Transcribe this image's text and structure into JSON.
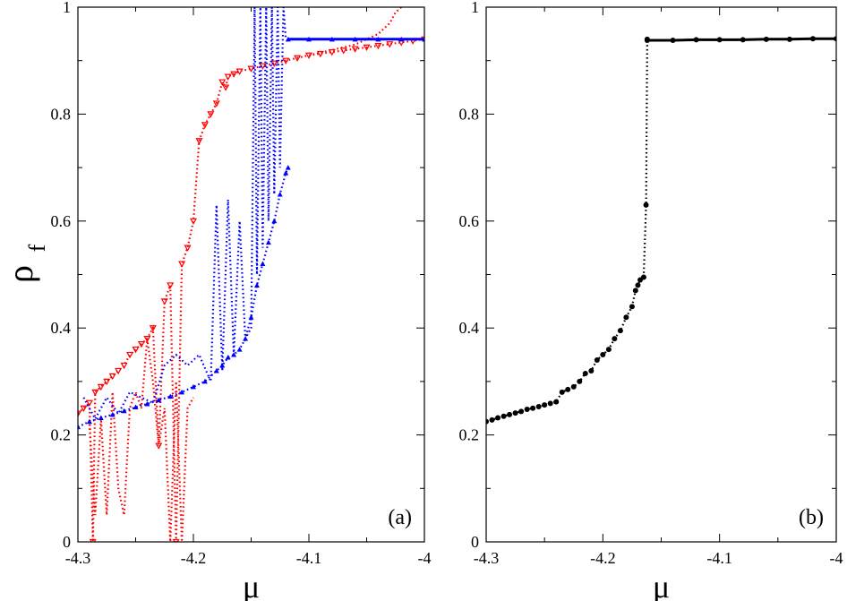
{
  "chart_data": [
    {
      "type": "scatter",
      "panel_label": "(a)",
      "xlabel": "μ",
      "ylabel": "ρ",
      "ylabel_sub": "f",
      "xlim": [
        -4.3,
        -4.0
      ],
      "ylim": [
        0,
        1
      ],
      "xticks": [
        -4.3,
        -4.2,
        -4.1,
        -4.0
      ],
      "xtick_labels": [
        "-4.3",
        "-4.2",
        "-4.1",
        "-4"
      ],
      "yticks": [
        0,
        0.2,
        0.4,
        0.6,
        0.8,
        1.0
      ],
      "ytick_labels": [
        "0",
        "0.2",
        "0.4",
        "0.6",
        "0.8",
        "1"
      ],
      "series": [
        {
          "name": "red dotted with down-triangles",
          "color": "#ff0000",
          "marker": "triangle-down",
          "line": "dotted",
          "x": [
            -4.3,
            -4.295,
            -4.29,
            -4.287,
            -4.285,
            -4.28,
            -4.275,
            -4.27,
            -4.265,
            -4.26,
            -4.255,
            -4.25,
            -4.245,
            -4.24,
            -4.235,
            -4.23,
            -4.225,
            -4.22,
            -4.215,
            -4.21,
            -4.205,
            -4.2,
            -4.195,
            -4.19,
            -4.185,
            -4.18,
            -4.175,
            -4.172,
            -4.17,
            -4.165,
            -4.16,
            -4.15,
            -4.14,
            -4.13,
            -4.12,
            -4.11,
            -4.1,
            -4.09,
            -4.08,
            -4.07,
            -4.06,
            -4.05,
            -4.04,
            -4.03,
            -4.02,
            -4.01,
            -4.0
          ],
          "y": [
            0.24,
            0.25,
            0.26,
            0.0,
            0.28,
            0.29,
            0.3,
            0.31,
            0.32,
            0.33,
            0.35,
            0.36,
            0.37,
            0.38,
            0.4,
            0.18,
            0.45,
            0.48,
            0.0,
            0.52,
            0.55,
            0.6,
            0.75,
            0.78,
            0.8,
            0.82,
            0.86,
            0.85,
            0.87,
            0.875,
            0.88,
            0.885,
            0.89,
            0.895,
            0.9,
            0.905,
            0.91,
            0.913,
            0.916,
            0.919,
            0.922,
            0.925,
            0.928,
            0.931,
            0.934,
            0.937,
            0.94
          ]
        },
        {
          "name": "red dotted upper branch",
          "color": "#ff0000",
          "marker": "none",
          "line": "dotted",
          "x": [
            -4.1,
            -4.08,
            -4.06,
            -4.05,
            -4.04,
            -4.03,
            -4.025,
            -4.02
          ],
          "y": [
            0.91,
            0.92,
            0.93,
            0.94,
            0.95,
            0.97,
            0.99,
            1.0
          ]
        },
        {
          "name": "red dotted drops",
          "color": "#ff0000",
          "marker": "none",
          "line": "dotted",
          "x": [
            -4.29,
            -4.285,
            -4.28,
            -4.275,
            -4.27,
            -4.265,
            -4.26,
            -4.255,
            -4.25,
            -4.245,
            -4.24,
            -4.235,
            -4.23,
            -4.225,
            -4.22,
            -4.215,
            -4.21,
            -4.205,
            -4.2
          ],
          "y": [
            0.22,
            0.05,
            0.23,
            0.05,
            0.28,
            0.1,
            0.05,
            0.25,
            0.28,
            0.25,
            0.38,
            0.3,
            0.18,
            0.25,
            0.0,
            0.3,
            0.0,
            0.25,
            0.27
          ]
        },
        {
          "name": "blue dotted with up-triangles",
          "color": "#0000ff",
          "marker": "triangle-up",
          "line": "dotted",
          "x": [
            -4.3,
            -4.29,
            -4.28,
            -4.27,
            -4.26,
            -4.25,
            -4.24,
            -4.23,
            -4.22,
            -4.21,
            -4.2,
            -4.19,
            -4.18,
            -4.175,
            -4.17,
            -4.165,
            -4.16,
            -4.155,
            -4.15,
            -4.145,
            -4.14,
            -4.135,
            -4.13,
            -4.125,
            -4.12,
            -4.118
          ],
          "y": [
            0.215,
            0.225,
            0.232,
            0.238,
            0.245,
            0.252,
            0.258,
            0.265,
            0.272,
            0.28,
            0.29,
            0.3,
            0.32,
            0.33,
            0.345,
            0.35,
            0.36,
            0.38,
            0.42,
            0.48,
            0.52,
            0.56,
            0.6,
            0.65,
            0.69,
            0.7
          ]
        },
        {
          "name": "blue dotted oscillations",
          "color": "#0000ff",
          "marker": "none",
          "line": "dotted",
          "x": [
            -4.295,
            -4.285,
            -4.275,
            -4.265,
            -4.255,
            -4.245,
            -4.235,
            -4.225,
            -4.215,
            -4.205,
            -4.195,
            -4.185,
            -4.18,
            -4.175,
            -4.17,
            -4.165,
            -4.16,
            -4.155,
            -4.15,
            -4.147,
            -4.145,
            -4.142,
            -4.14,
            -4.137,
            -4.135,
            -4.132,
            -4.13,
            -4.127,
            -4.125,
            -4.122,
            -4.12
          ],
          "y": [
            0.27,
            0.23,
            0.27,
            0.24,
            0.28,
            0.27,
            0.26,
            0.33,
            0.35,
            0.33,
            0.35,
            0.3,
            0.63,
            0.32,
            0.64,
            0.35,
            0.6,
            0.38,
            0.4,
            1.0,
            0.5,
            1.0,
            0.55,
            1.0,
            0.6,
            1.0,
            0.65,
            1.0,
            0.7,
            1.0,
            0.94
          ]
        },
        {
          "name": "blue upper plateau",
          "color": "#0000ff",
          "marker": "triangle-up",
          "line": "solid",
          "x": [
            -4.118,
            -4.1,
            -4.08,
            -4.06,
            -4.04,
            -4.02,
            -4.0
          ],
          "y": [
            0.94,
            0.94,
            0.94,
            0.94,
            0.94,
            0.94,
            0.94
          ]
        }
      ]
    },
    {
      "type": "scatter",
      "panel_label": "(b)",
      "xlabel": "μ",
      "ylabel": "",
      "xlim": [
        -4.3,
        -4.0
      ],
      "ylim": [
        0,
        1
      ],
      "xticks": [
        -4.3,
        -4.2,
        -4.1,
        -4.0
      ],
      "xtick_labels": [
        "-4.3",
        "-4.2",
        "-4.1",
        "-4"
      ],
      "yticks": [
        0,
        0.2,
        0.4,
        0.6,
        0.8,
        1.0
      ],
      "ytick_labels": [
        "0",
        "0.2",
        "0.4",
        "0.6",
        "0.8",
        "1"
      ],
      "series": [
        {
          "name": "black circles",
          "color": "#000000",
          "marker": "circle",
          "line": "dotted",
          "x": [
            -4.3,
            -4.295,
            -4.29,
            -4.285,
            -4.28,
            -4.275,
            -4.27,
            -4.265,
            -4.26,
            -4.255,
            -4.25,
            -4.245,
            -4.24,
            -4.235,
            -4.23,
            -4.225,
            -4.22,
            -4.215,
            -4.21,
            -4.205,
            -4.2,
            -4.195,
            -4.19,
            -4.185,
            -4.18,
            -4.175,
            -4.172,
            -4.17,
            -4.168,
            -4.165,
            -4.163,
            -4.162
          ],
          "y": [
            0.225,
            0.228,
            0.232,
            0.235,
            0.238,
            0.241,
            0.244,
            0.248,
            0.25,
            0.253,
            0.256,
            0.259,
            0.262,
            0.28,
            0.285,
            0.29,
            0.3,
            0.315,
            0.32,
            0.34,
            0.35,
            0.36,
            0.38,
            0.395,
            0.42,
            0.44,
            0.47,
            0.48,
            0.49,
            0.495,
            0.63,
            0.94
          ]
        },
        {
          "name": "black upper plateau",
          "color": "#000000",
          "marker": "circle",
          "line": "solid",
          "x": [
            -4.162,
            -4.14,
            -4.12,
            -4.1,
            -4.08,
            -4.06,
            -4.04,
            -4.02,
            -4.0
          ],
          "y": [
            0.938,
            0.938,
            0.939,
            0.939,
            0.939,
            0.94,
            0.94,
            0.941,
            0.941
          ]
        }
      ]
    }
  ]
}
